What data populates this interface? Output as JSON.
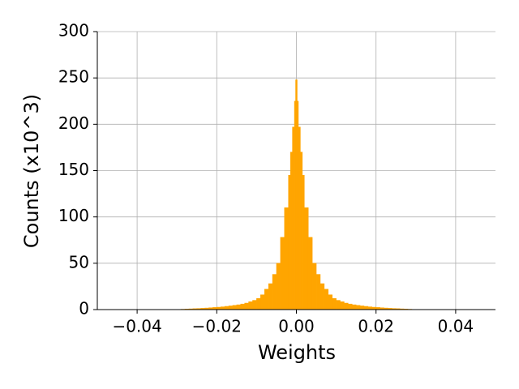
{
  "chart_data": {
    "type": "histogram",
    "x_label": "Weights",
    "y_label": "Counts (x10^3)",
    "bins": [
      -0.03,
      -0.029,
      -0.028,
      -0.027,
      -0.026,
      -0.025,
      -0.024,
      -0.023,
      -0.022,
      -0.021,
      -0.02,
      -0.019,
      -0.018,
      -0.017,
      -0.016,
      -0.015,
      -0.014,
      -0.013,
      -0.012,
      -0.011,
      -0.01,
      -0.009,
      -0.008,
      -0.007,
      -0.006,
      -0.005,
      -0.004,
      -0.003,
      -0.002,
      -0.0015,
      -0.001,
      -0.0005,
      -0.0002,
      0.0002,
      0.0005,
      0.001,
      0.0015,
      0.002,
      0.003,
      0.004,
      0.005,
      0.006,
      0.007,
      0.008,
      0.009,
      0.01,
      0.011,
      0.012,
      0.013,
      0.014,
      0.015,
      0.016,
      0.017,
      0.018,
      0.019,
      0.02,
      0.021,
      0.022,
      0.023,
      0.024,
      0.025,
      0.026,
      0.027,
      0.028,
      0.029,
      0.03
    ],
    "values": [
      0.2,
      0.4,
      0.6,
      0.8,
      1,
      1.2,
      1.4,
      1.7,
      2,
      2.3,
      2.6,
      3,
      3.5,
      4,
      4.6,
      5.2,
      6,
      7,
      8.5,
      10,
      12,
      16,
      22,
      28,
      38,
      50,
      78,
      110,
      145,
      170,
      197,
      225,
      248,
      225,
      197,
      170,
      145,
      110,
      78,
      50,
      38,
      28,
      22,
      16,
      12,
      10,
      8.5,
      7,
      6,
      5.2,
      4.6,
      4,
      3.5,
      3,
      2.6,
      2.3,
      2,
      1.7,
      1.4,
      1.2,
      1,
      0.8,
      0.6,
      0.4,
      0.2
    ],
    "color": "#ffa500",
    "xlim": [
      -0.05,
      0.05
    ],
    "xticks": [
      {
        "value": -0.04,
        "label": "−0.04"
      },
      {
        "value": -0.02,
        "label": "−0.02"
      },
      {
        "value": 0,
        "label": "0.00"
      },
      {
        "value": 0.02,
        "label": "0.02"
      },
      {
        "value": 0.04,
        "label": "0.04"
      }
    ],
    "ylim": [
      0,
      300
    ],
    "yticks": [
      0,
      50,
      100,
      150,
      200,
      250,
      300
    ],
    "grid": true
  }
}
